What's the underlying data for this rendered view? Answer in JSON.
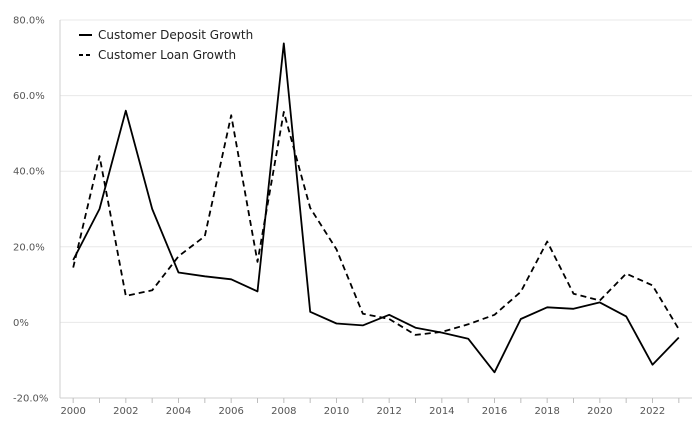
{
  "chart_data": {
    "type": "line",
    "title": "",
    "xlabel": "",
    "ylabel": "",
    "x": [
      2000,
      2001,
      2002,
      2003,
      2004,
      2005,
      2006,
      2007,
      2008,
      2009,
      2010,
      2011,
      2012,
      2013,
      2014,
      2015,
      2016,
      2017,
      2018,
      2019,
      2020,
      2021,
      2022,
      2023
    ],
    "xlim": [
      1999.5,
      2023.5
    ],
    "ylim": [
      -20,
      80
    ],
    "x_ticks": [
      2000,
      2002,
      2004,
      2006,
      2008,
      2010,
      2012,
      2014,
      2016,
      2018,
      2020,
      2022
    ],
    "y_ticks": [
      -20,
      0,
      20,
      40,
      60,
      80
    ],
    "y_tick_labels": [
      "-20.0%",
      "0%",
      "20.0%",
      "40.0%",
      "60.0%",
      "80.0%"
    ],
    "grid": "horizontal",
    "legend_position": "top-left",
    "series": [
      {
        "name": "Customer Deposit Growth",
        "dash": "solid",
        "color": "#000000",
        "values": [
          16.5,
          30.0,
          56.0,
          30.0,
          13.2,
          12.2,
          11.4,
          8.2,
          73.8,
          2.8,
          -0.3,
          -0.8,
          2.0,
          -1.4,
          -2.7,
          -4.3,
          -13.2,
          0.9,
          4.0,
          3.6,
          5.3,
          1.6,
          -11.2,
          -4.0
        ]
      },
      {
        "name": "Customer Loan Growth",
        "dash": "dashed",
        "color": "#000000",
        "values": [
          14.5,
          44.0,
          7.0,
          8.5,
          17.5,
          22.8,
          54.8,
          16.0,
          55.7,
          30.3,
          19.3,
          2.3,
          0.9,
          -3.3,
          -2.5,
          -0.5,
          2.0,
          8.1,
          21.4,
          7.6,
          5.8,
          12.9,
          9.8,
          -1.8
        ]
      }
    ]
  }
}
